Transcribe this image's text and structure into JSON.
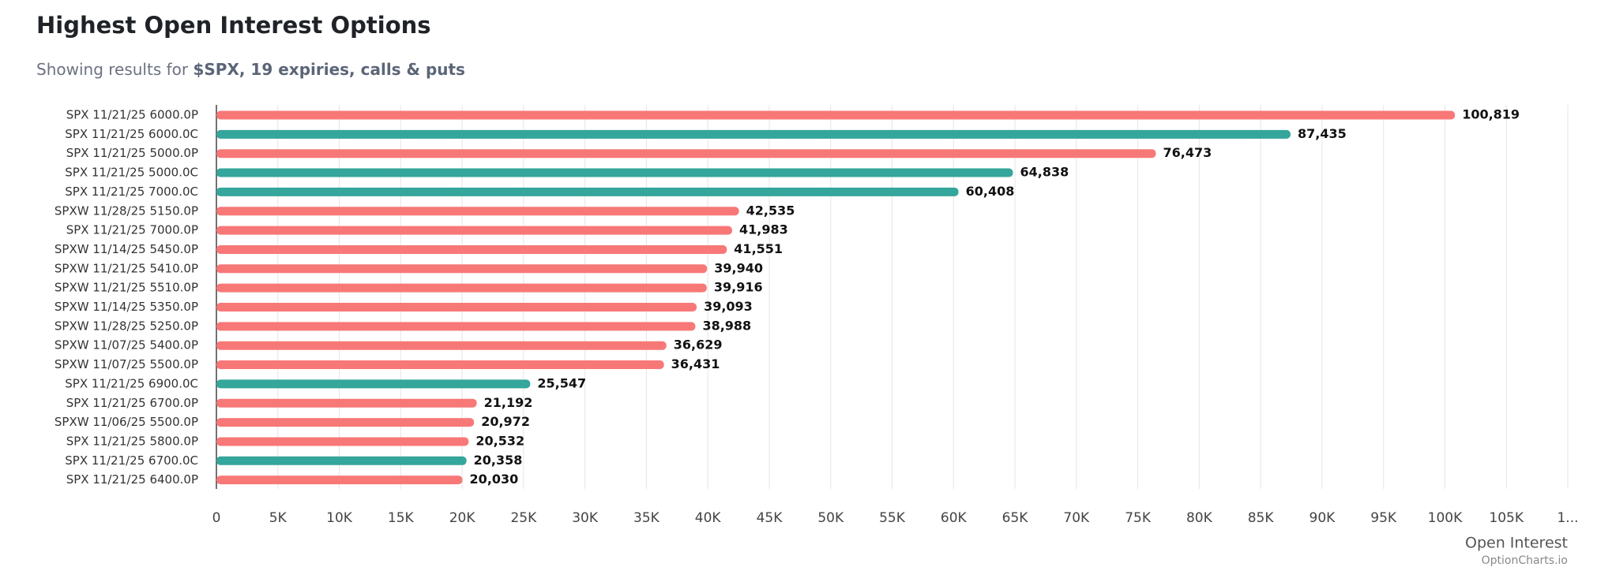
{
  "chart_data": {
    "type": "bar",
    "orientation": "horizontal",
    "title": "Highest Open Interest Options",
    "subtitle": "Showing results for",
    "subtitle_emphasis": "$SPX, 19 expiries, calls & puts",
    "x_label": "Open Interest",
    "watermark": "OptionCharts.io",
    "categories": [
      "SPX 11/21/25 6000.0P",
      "SPX 11/21/25 6000.0C",
      "SPX 11/21/25 5000.0P",
      "SPX 11/21/25 5000.0C",
      "SPX 11/21/25 7000.0C",
      "SPXW 11/28/25 5150.0P",
      "SPX 11/21/25 7000.0P",
      "SPXW 11/14/25 5450.0P",
      "SPXW 11/21/25 5410.0P",
      "SPXW 11/21/25 5510.0P",
      "SPXW 11/14/25 5350.0P",
      "SPXW 11/28/25 5250.0P",
      "SPXW 11/07/25 5400.0P",
      "SPXW 11/07/25 5500.0P",
      "SPX 11/21/25 6900.0C",
      "SPX 11/21/25 6700.0P",
      "SPXW 11/06/25 5500.0P",
      "SPX 11/21/25 5800.0P",
      "SPX 11/21/25 6700.0C",
      "SPX 11/21/25 6400.0P"
    ],
    "values": [
      100819,
      87435,
      76473,
      64838,
      60408,
      42535,
      41983,
      41551,
      39940,
      39916,
      39093,
      38988,
      36629,
      36431,
      25547,
      21192,
      20972,
      20532,
      20358,
      20030
    ],
    "value_labels": [
      "100,819",
      "87,435",
      "76,473",
      "64,838",
      "60,408",
      "42,535",
      "41,983",
      "41,551",
      "39,940",
      "39,916",
      "39,093",
      "38,988",
      "36,629",
      "36,431",
      "25,547",
      "21,192",
      "20,972",
      "20,532",
      "20,358",
      "20,030"
    ],
    "colors": [
      "#f87878",
      "#35a69b",
      "#f87878",
      "#35a69b",
      "#35a69b",
      "#f87878",
      "#f87878",
      "#f87878",
      "#f87878",
      "#f87878",
      "#f87878",
      "#f87878",
      "#f87878",
      "#f87878",
      "#35a69b",
      "#f87878",
      "#f87878",
      "#f87878",
      "#35a69b",
      "#f87878"
    ],
    "xlim": [
      0,
      110000
    ],
    "xticks": [
      0,
      {
        "value": 5000,
        "label": "5K"
      },
      {
        "value": 10000,
        "label": "10K"
      },
      {
        "value": 15000,
        "label": "15K"
      },
      {
        "value": 20000,
        "label": "20K"
      },
      {
        "value": 25000,
        "label": "25K"
      },
      {
        "value": 30000,
        "label": "30K"
      },
      {
        "value": 35000,
        "label": "35K"
      },
      {
        "value": 40000,
        "label": "40K"
      },
      {
        "value": 45000,
        "label": "45K"
      },
      {
        "value": 50000,
        "label": "50K"
      },
      {
        "value": 55000,
        "label": "55K"
      },
      {
        "value": 60000,
        "label": "60K"
      },
      {
        "value": 65000,
        "label": "65K"
      },
      {
        "value": 70000,
        "label": "70K"
      },
      {
        "value": 75000,
        "label": "75K"
      },
      {
        "value": 80000,
        "label": "80K"
      },
      {
        "value": 85000,
        "label": "85K"
      },
      {
        "value": 90000,
        "label": "90K"
      },
      {
        "value": 95000,
        "label": "95K"
      },
      {
        "value": 100000,
        "label": "100K"
      },
      {
        "value": 105000,
        "label": "105K"
      },
      {
        "value": 110000,
        "label": "1..."
      }
    ],
    "grid": true
  }
}
